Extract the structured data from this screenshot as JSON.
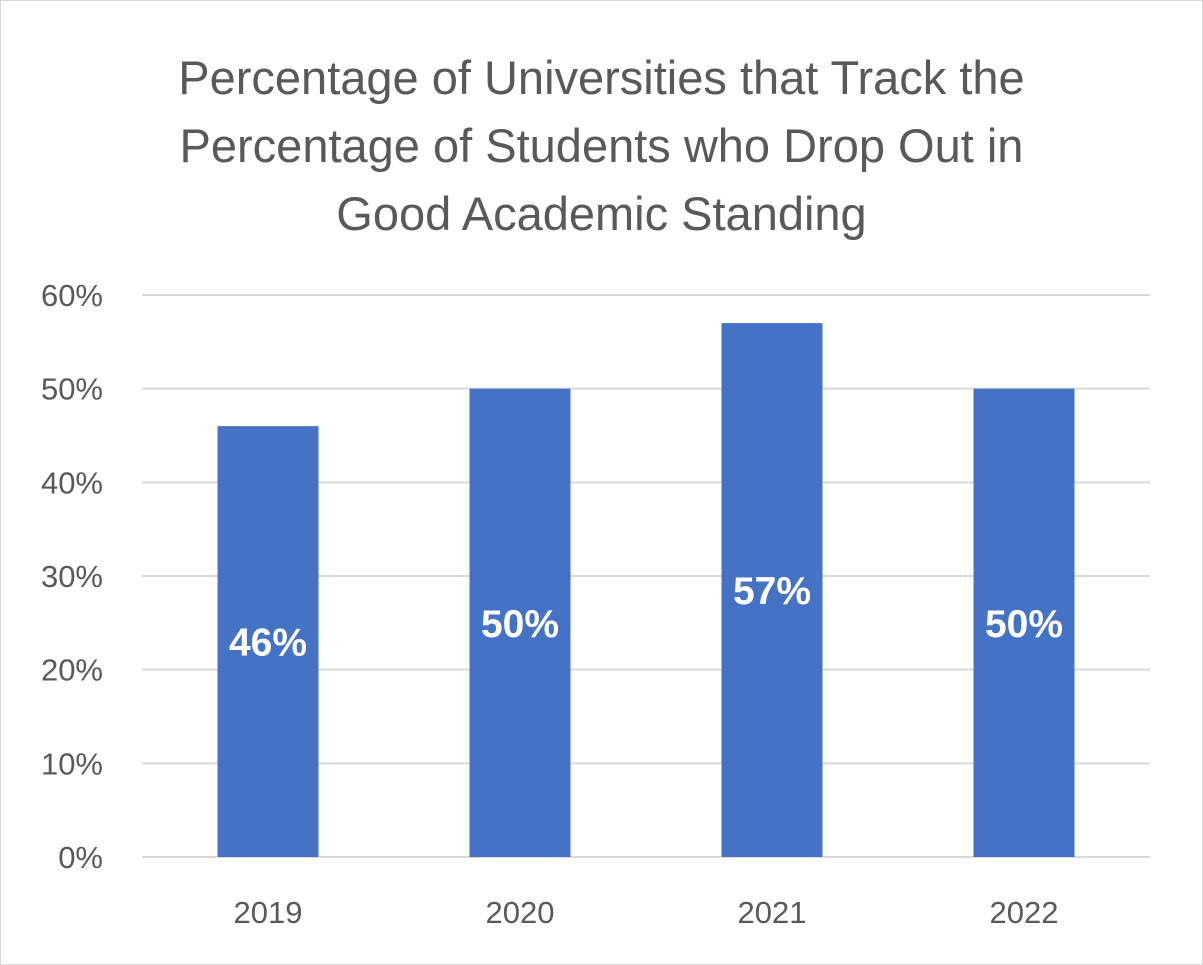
{
  "chart_data": {
    "type": "bar",
    "title_lines": [
      "Percentage of Universities that Track the",
      "Percentage of Students who Drop Out in",
      "Good Academic Standing"
    ],
    "categories": [
      "2019",
      "2020",
      "2021",
      "2022"
    ],
    "values": [
      46,
      50,
      57,
      50
    ],
    "data_labels": [
      "46%",
      "50%",
      "57%",
      "50%"
    ],
    "ylim": [
      0,
      60
    ],
    "y_ticks": [
      "0%",
      "10%",
      "20%",
      "30%",
      "40%",
      "50%",
      "60%"
    ],
    "y_tick_values": [
      0,
      10,
      20,
      30,
      40,
      50,
      60
    ],
    "grid": true,
    "legend": "none",
    "bar_color": "#4472c4",
    "grid_color": "#d9d9d9",
    "text_color": "#595959"
  }
}
